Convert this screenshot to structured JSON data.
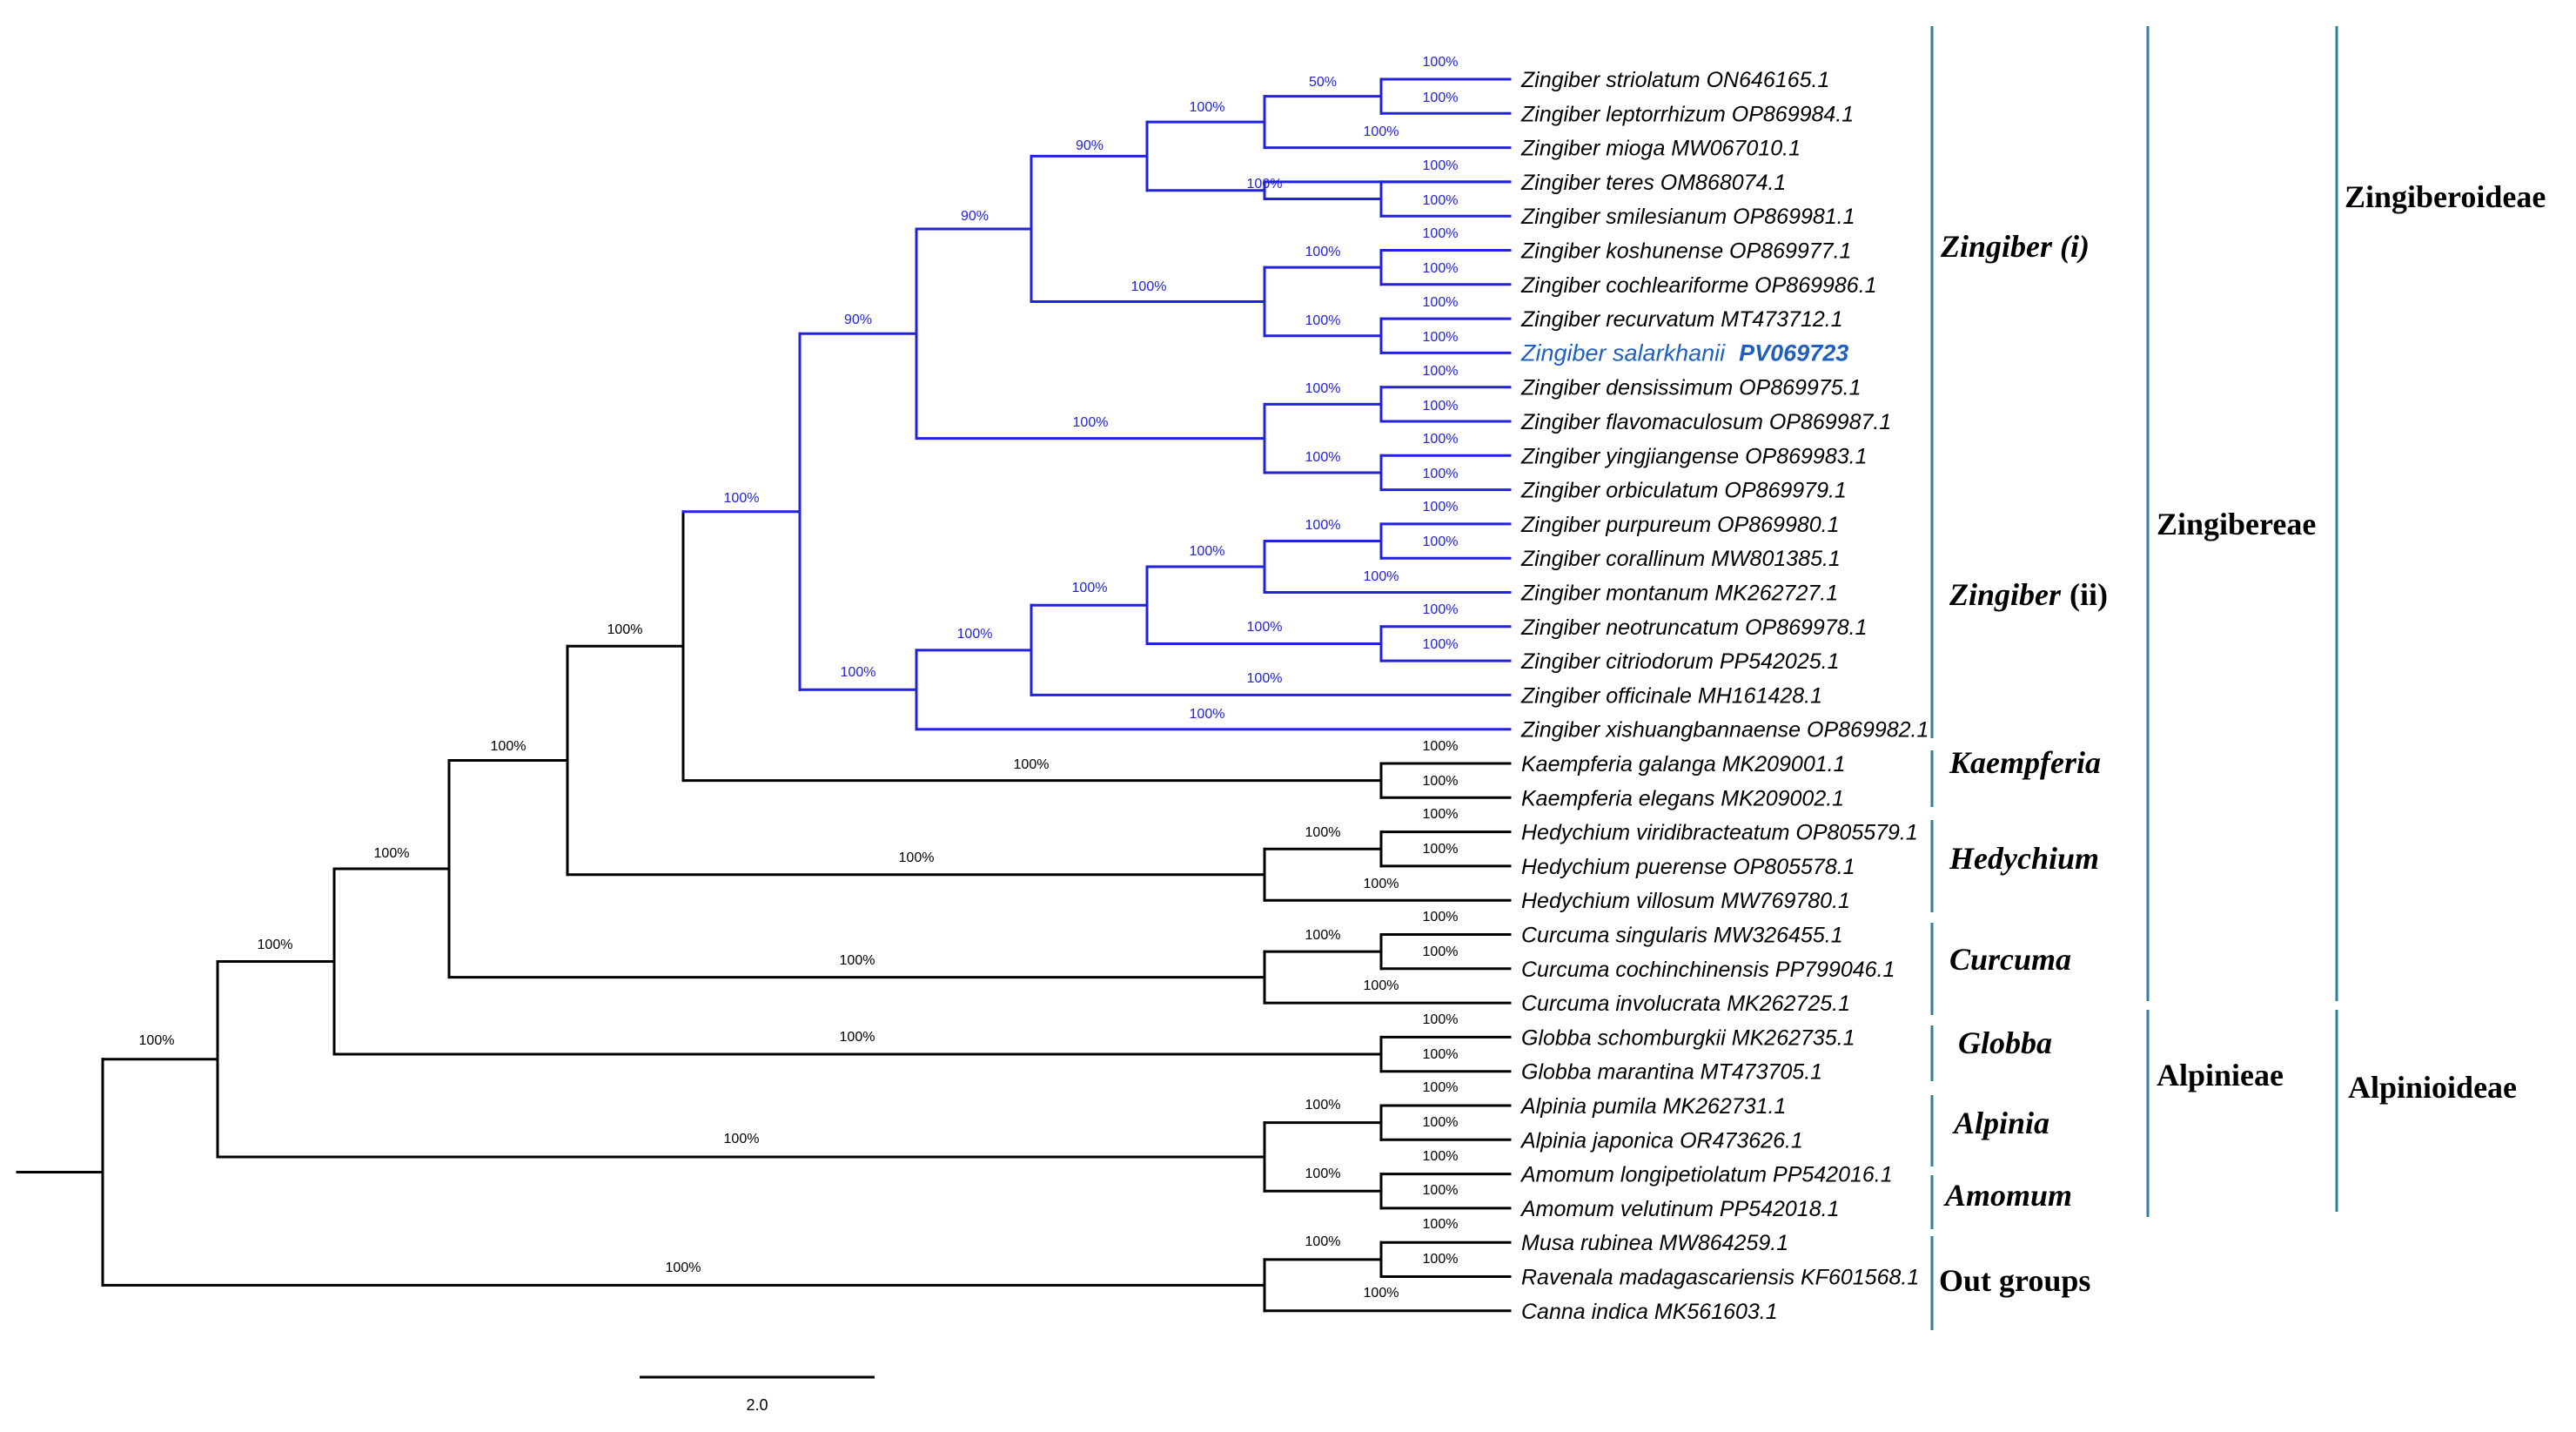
{
  "colors": {
    "zingiber_branch": "#2222dd",
    "other_branch": "#000000",
    "highlight_text": "#1f5fbf",
    "bracket_line": "#2e7f9e",
    "bootstrap_blue": "#2222dd",
    "bootstrap_black": "#000000"
  },
  "taxa": [
    {
      "name": "Zingiber striolatum ON646165.1"
    },
    {
      "name": "Zingiber leptorrhizum OP869984.1"
    },
    {
      "name": "Zingiber mioga MW067010.1"
    },
    {
      "name": "Zingiber teres OM868074.1"
    },
    {
      "name": "Zingiber smilesianum OP869981.1"
    },
    {
      "name": "Zingiber koshunense OP869977.1"
    },
    {
      "name": "Zingiber cochleariforme OP869986.1"
    },
    {
      "name": "Zingiber recurvatum MT473712.1"
    },
    {
      "name": "Zingiber salarkhanii",
      "accession": "PV069723",
      "highlight": true
    },
    {
      "name": "Zingiber densissimum OP869975.1"
    },
    {
      "name": "Zingiber flavomaculosum OP869987.1"
    },
    {
      "name": "Zingiber yingjiangense OP869983.1"
    },
    {
      "name": "Zingiber orbiculatum OP869979.1"
    },
    {
      "name": "Zingiber purpureum OP869980.1"
    },
    {
      "name": "Zingiber corallinum MW801385.1"
    },
    {
      "name": "Zingiber montanum MK262727.1"
    },
    {
      "name": "Zingiber neotruncatum OP869978.1"
    },
    {
      "name": "Zingiber citriodorum PP542025.1"
    },
    {
      "name": "Zingiber officinale MH161428.1"
    },
    {
      "name": "Zingiber xishuangbannaense OP869982.1"
    },
    {
      "name": "Kaempferia galanga MK209001.1"
    },
    {
      "name": "Kaempferia elegans MK209002.1"
    },
    {
      "name": "Hedychium viridibracteatum OP805579.1"
    },
    {
      "name": "Hedychium puerense OP805578.1"
    },
    {
      "name": "Hedychium villosum MW769780.1"
    },
    {
      "name": "Curcuma singularis MW326455.1"
    },
    {
      "name": "Curcuma cochinchinensis PP799046.1"
    },
    {
      "name": "Curcuma involucrata MK262725.1"
    },
    {
      "name": "Globba schomburgkii MK262735.1"
    },
    {
      "name": "Globba marantina MT473705.1"
    },
    {
      "name": "Alpinia pumila MK262731.1"
    },
    {
      "name": "Alpinia japonica OR473626.1"
    },
    {
      "name": "Amomum longipetiolatum PP542016.1"
    },
    {
      "name": "Amomum velutinum PP542018.1"
    },
    {
      "name": "Musa rubinea MW864259.1"
    },
    {
      "name": "Ravenala madagascariensis KF601568.1"
    },
    {
      "name": "Canna indica MK561603.1"
    }
  ],
  "bootstrap_values": {
    "root": "100%",
    "ingroup": "100%",
    "zingiberoideae": "100%",
    "zingibereae_core": "100%",
    "zingiber_kaempferia_hedychium": "100%",
    "zingiber_kaempferia": "100%",
    "zingiber_genus": "90%",
    "zingiber_i": "90%",
    "zingiber_i_a": "90%",
    "zingiber_i_b": "100%",
    "striolatum_group": "100%",
    "striolatum_leptorrhizum_pair": "50%",
    "striolatum_leptorrhizum": "100%",
    "leptorrhizum_tip": "100%",
    "mioga_tip": "100%",
    "teres_smilesianum_group": "100%",
    "teres_smilesianum": "100%",
    "smilesianum_tip": "100%",
    "koshunense_recurvatum_group": "100%",
    "koshunense_cochleariforme": "100%",
    "koshunense_tip": "100%",
    "cochleariforme_tip": "100%",
    "recurvatum_salarkhanii": "100%",
    "recurvatum_tip": "100%",
    "salarkhanii_tip": "100%",
    "densissimum_orbiculatum_group": "100%",
    "densissimum_flavomaculosum": "100%",
    "densissimum_tip": "100%",
    "flavomaculosum_tip": "100%",
    "yingjiangense_orbiculatum": "100%",
    "yingjiangense_tip": "100%",
    "orbiculatum_tip": "100%",
    "zingiber_ii": "100%",
    "zingiber_ii_core": "100%",
    "purpureum_citriodorum_group": "100%",
    "purpureum_montanum_group": "100%",
    "purpureum_corallinum": "100%",
    "purpureum_tip": "100%",
    "corallinum_tip": "100%",
    "montanum_tip": "100%",
    "neotruncatum_citriodorum": "100%",
    "neotruncatum_tip": "100%",
    "citriodorum_tip": "100%",
    "officinale_tip": "100%",
    "xishuangbannaense_tip": "100%",
    "kaempferia": "100%",
    "kaempferia_galanga_tip": "100%",
    "kaempferia_elegans_tip": "100%",
    "hedychium": "100%",
    "hedychium_pair": "100%",
    "hedychium_viridibracteatum_tip": "100%",
    "hedychium_puerense_tip": "100%",
    "hedychium_villosum_tip": "100%",
    "curcuma": "100%",
    "curcuma_pair": "100%",
    "curcuma_singularis_tip": "100%",
    "curcuma_cochinchinensis_tip": "100%",
    "curcuma_involucrata_tip": "100%",
    "globba": "100%",
    "globba_schomburgkii_tip": "100%",
    "globba_marantina_tip": "100%",
    "alpinia_amomum": "100%",
    "alpinia": "100%",
    "alpinia_pumila_tip": "100%",
    "alpinia_japonica_tip": "100%",
    "amomum": "100%",
    "amomum_longipetiolatum_tip": "100%",
    "amomum_velutinum_tip": "100%",
    "outgroup": "100%",
    "musa_ravenala": "100%",
    "musa_tip": "100%",
    "ravenala_tip": "100%",
    "canna_tip": "100%"
  },
  "clade_labels": {
    "zingiber_i": "Zingiber (i)",
    "zingiber_ii_genus": "Zingiber",
    "zingiber_ii_suffix": "(ii)",
    "kaempferia": "Kaempferia",
    "hedychium": "Hedychium",
    "curcuma": "Curcuma",
    "globba": "Globba",
    "alpinia": "Alpinia",
    "amomum": "Amomum",
    "outgroups": "Out groups"
  },
  "tribe_labels": {
    "zingibereae": "Zingibereae",
    "alpinieae": "Alpinieae"
  },
  "subfamily_labels": {
    "zingiberoideae": "Zingiberoideae",
    "alpinioideae": "Alpinioideae"
  },
  "scale_bar": {
    "label": "2.0"
  }
}
